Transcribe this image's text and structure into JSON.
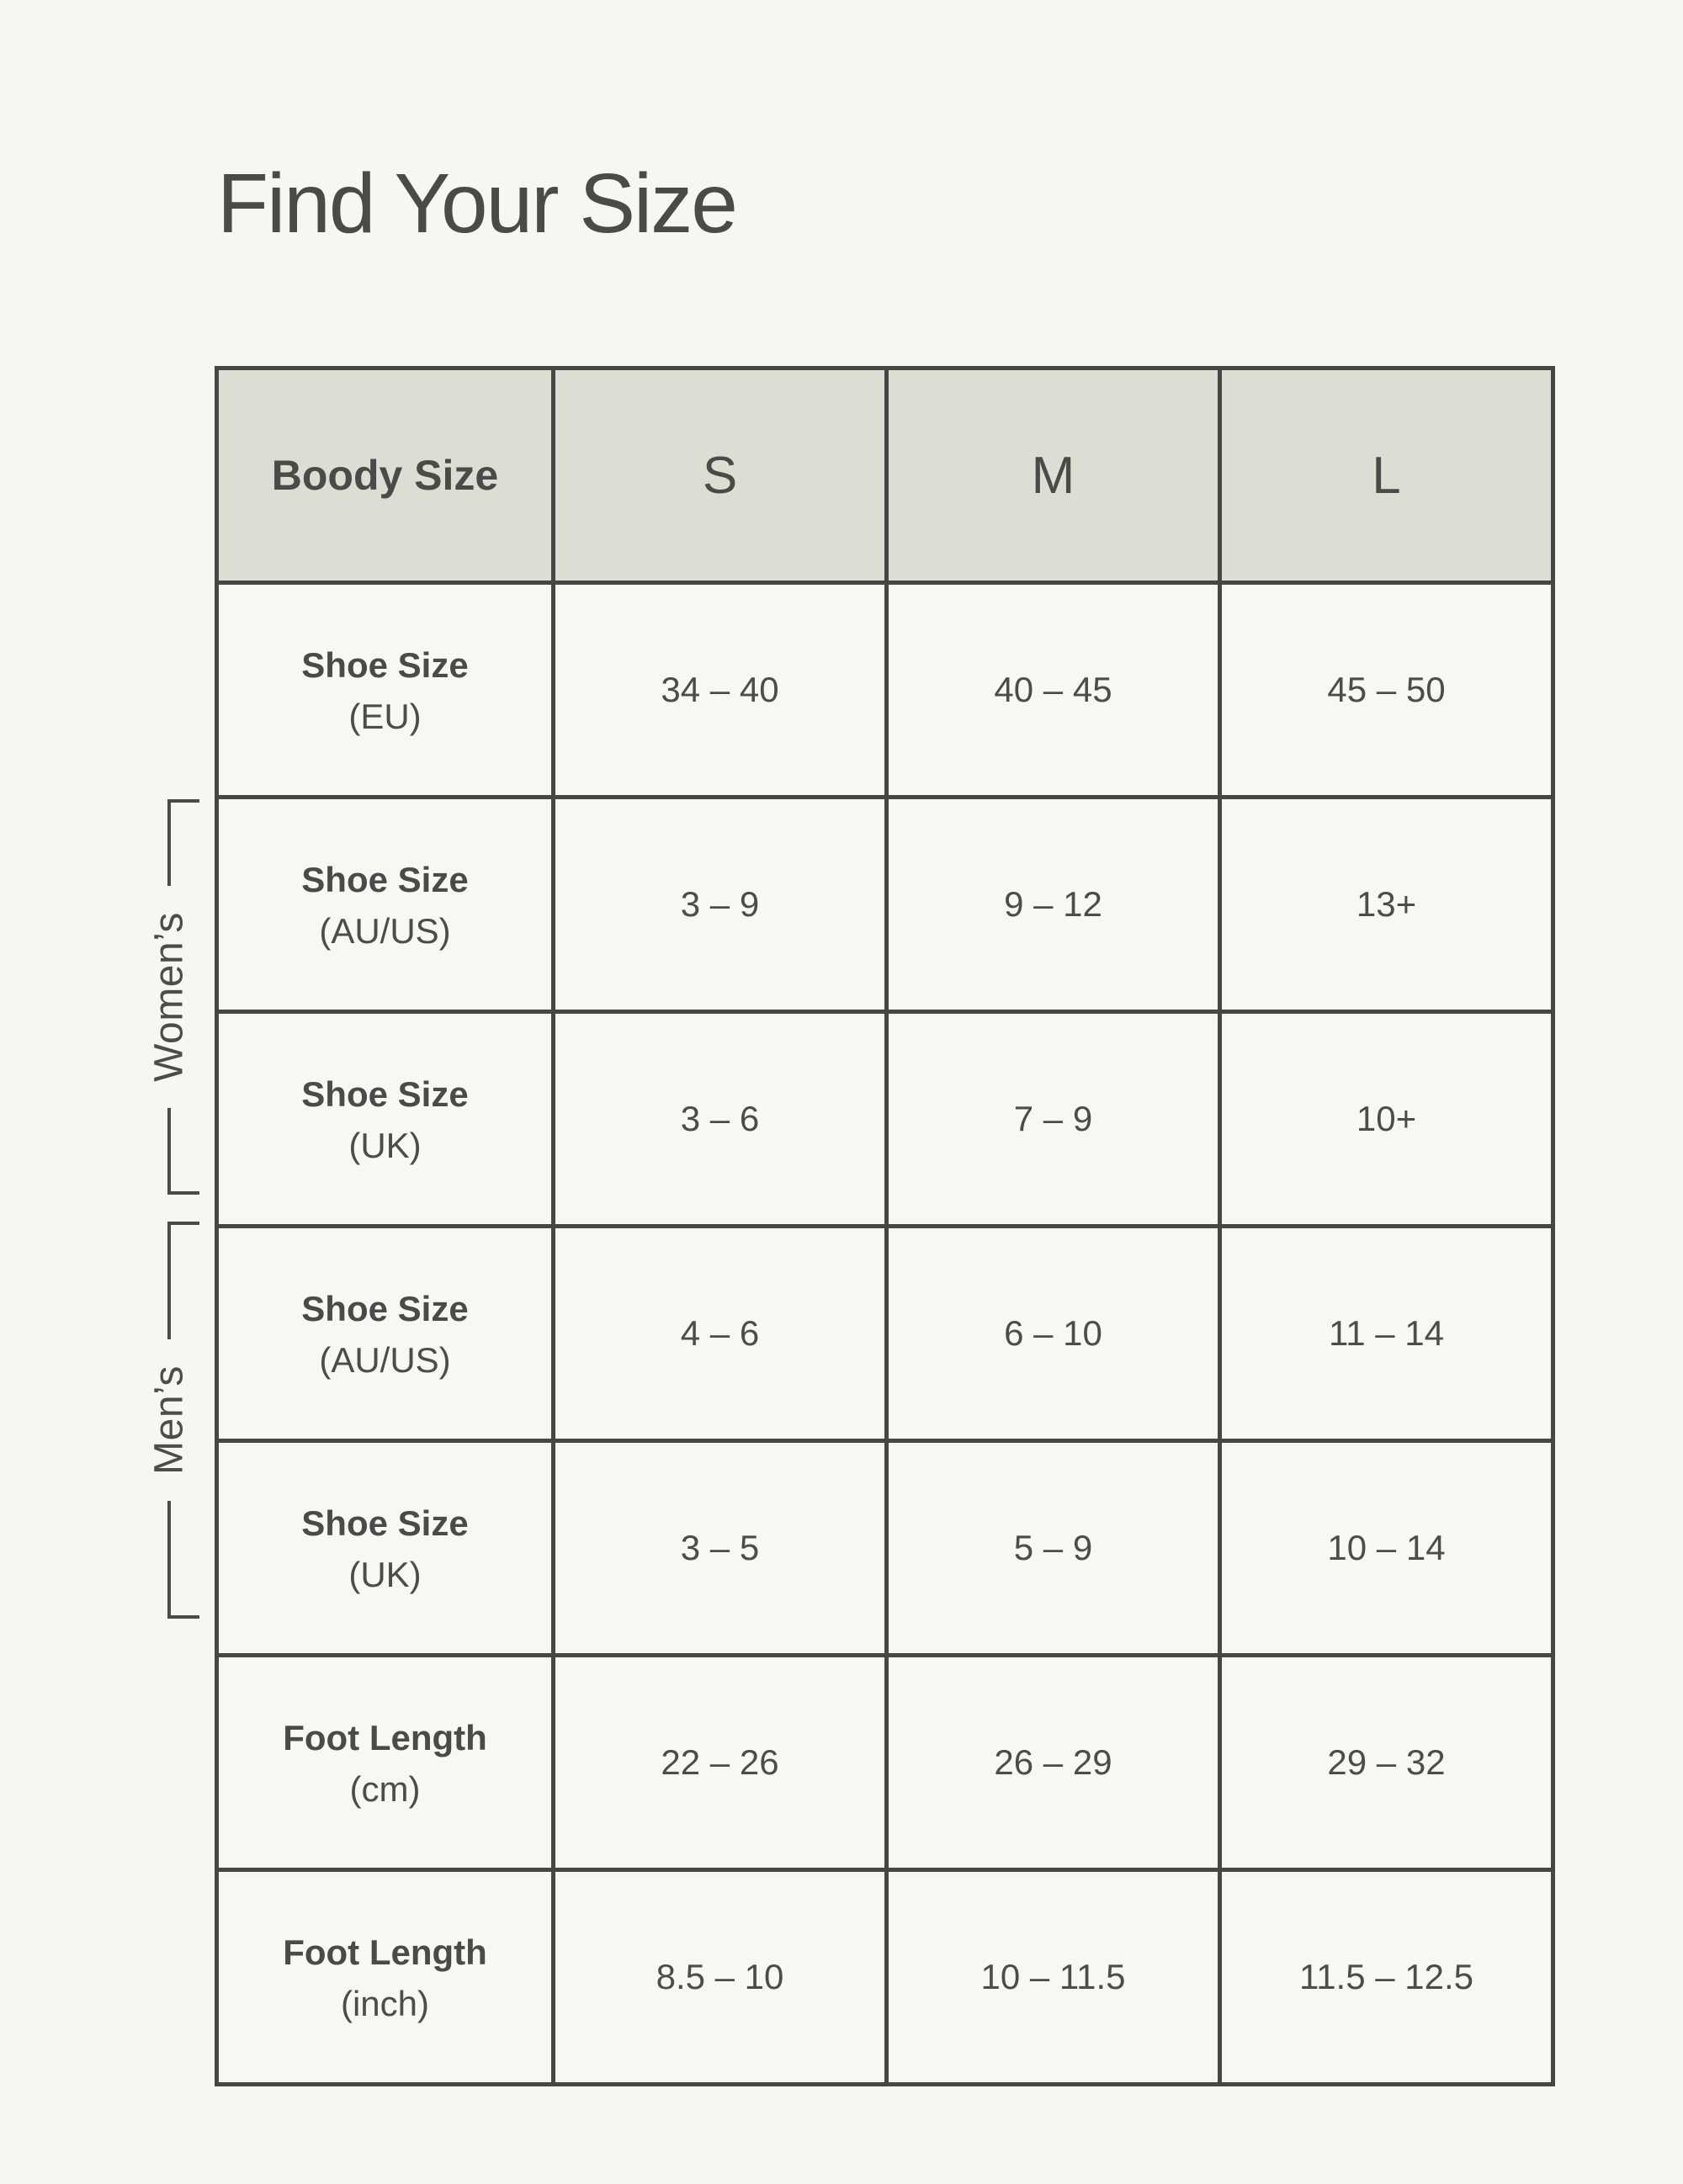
{
  "page": {
    "title": "Find Your Size"
  },
  "colors": {
    "page_background": "#F7F6F1",
    "header_background": "#DDDDD4",
    "cell_background": "#F8F7F2",
    "border": "#464645",
    "text": "#4C4C4A"
  },
  "group_labels": {
    "womens": "Women’s",
    "mens": "Men’s"
  },
  "size_table": {
    "columns": [
      "Boody Size",
      "S",
      "M",
      "L"
    ],
    "rows": [
      {
        "label": "Shoe Size",
        "sublabel": "(EU)",
        "group": "",
        "values": [
          "34 – 40",
          "40 – 45",
          "45 – 50"
        ]
      },
      {
        "label": "Shoe Size",
        "sublabel": "(AU/US)",
        "group": "womens",
        "values": [
          "3 – 9",
          "9 – 12",
          "13+"
        ]
      },
      {
        "label": "Shoe Size",
        "sublabel": "(UK)",
        "group": "womens",
        "values": [
          "3 – 6",
          "7 – 9",
          "10+"
        ]
      },
      {
        "label": "Shoe Size",
        "sublabel": "(AU/US)",
        "group": "mens",
        "values": [
          "4 – 6",
          "6 – 10",
          "11 – 14"
        ]
      },
      {
        "label": "Shoe Size",
        "sublabel": "(UK)",
        "group": "mens",
        "values": [
          "3 – 5",
          "5 – 9",
          "10 – 14"
        ]
      },
      {
        "label": "Foot Length",
        "sublabel": "(cm)",
        "group": "",
        "values": [
          "22 – 26",
          "26 – 29",
          "29 – 32"
        ]
      },
      {
        "label": "Foot Length",
        "sublabel": "(inch)",
        "group": "",
        "values": [
          "8.5 – 10",
          "10 – 11.5",
          "11.5 – 12.5"
        ]
      }
    ]
  }
}
